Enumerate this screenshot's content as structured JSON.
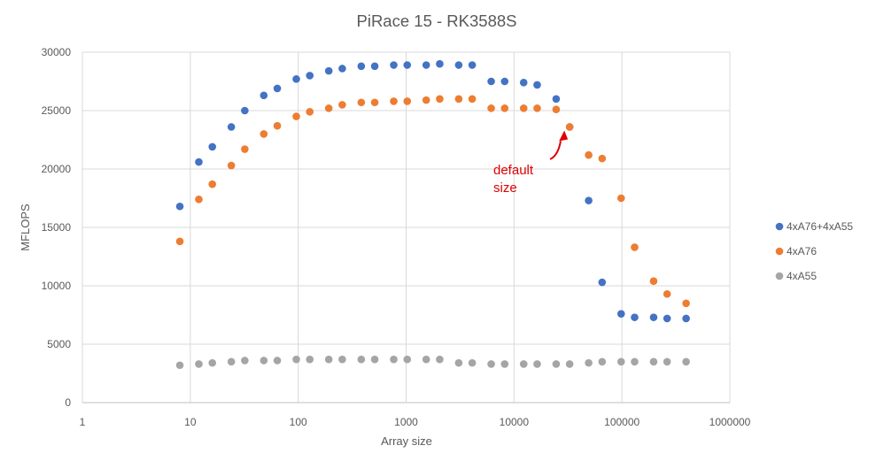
{
  "chart_data": {
    "type": "scatter",
    "title": "PiRace 15 - RK3588S",
    "xlabel": "Array size",
    "ylabel": "MFLOPS",
    "xscale": "log",
    "xlim": [
      1,
      1000000
    ],
    "ylim": [
      0,
      30000
    ],
    "xticks": [
      "1",
      "10",
      "100",
      "1000",
      "10000",
      "100000",
      "1000000"
    ],
    "yticks": [
      "0",
      "5000",
      "10000",
      "15000",
      "20000",
      "25000",
      "30000"
    ],
    "grid": true,
    "legend_position": "right",
    "series": [
      {
        "name": "4xA76+4xA55",
        "color": "#4472C4",
        "x": [
          8,
          12,
          16,
          24,
          32,
          48,
          64,
          96,
          128,
          192,
          256,
          384,
          512,
          768,
          1024,
          1536,
          2048,
          3072,
          4096,
          6144,
          8192,
          12288,
          16384,
          24576,
          32768,
          49152,
          65536,
          98304,
          131072,
          196608,
          262144,
          393216
        ],
        "y": [
          16800,
          20600,
          21900,
          23600,
          25000,
          26300,
          26900,
          27700,
          28000,
          28400,
          28600,
          28800,
          28800,
          28900,
          28900,
          28900,
          29000,
          28900,
          28900,
          27500,
          27500,
          27400,
          27200,
          26000,
          23600,
          17300,
          10300,
          7600,
          7300,
          7300,
          7200,
          7200
        ]
      },
      {
        "name": "4xA76",
        "color": "#ED7D31",
        "x": [
          8,
          12,
          16,
          24,
          32,
          48,
          64,
          96,
          128,
          192,
          256,
          384,
          512,
          768,
          1024,
          1536,
          2048,
          3072,
          4096,
          6144,
          8192,
          12288,
          16384,
          24576,
          32768,
          49152,
          65536,
          98304,
          131072,
          196608,
          262144,
          393216
        ],
        "y": [
          13800,
          17400,
          18700,
          20300,
          21700,
          23000,
          23700,
          24500,
          24900,
          25200,
          25500,
          25700,
          25700,
          25800,
          25800,
          25900,
          26000,
          26000,
          26000,
          25200,
          25200,
          25200,
          25200,
          25100,
          23600,
          21200,
          20900,
          17500,
          13300,
          10400,
          9300,
          8500
        ]
      },
      {
        "name": "4xA55",
        "color": "#A5A5A5",
        "x": [
          8,
          12,
          16,
          24,
          32,
          48,
          64,
          96,
          128,
          192,
          256,
          384,
          512,
          768,
          1024,
          1536,
          2048,
          3072,
          4096,
          6144,
          8192,
          12288,
          16384,
          24576,
          32768,
          49152,
          65536,
          98304,
          131072,
          196608,
          262144,
          393216
        ],
        "y": [
          3200,
          3300,
          3400,
          3500,
          3600,
          3600,
          3600,
          3700,
          3700,
          3700,
          3700,
          3700,
          3700,
          3700,
          3700,
          3700,
          3700,
          3400,
          3400,
          3300,
          3300,
          3300,
          3300,
          3300,
          3300,
          3400,
          3500,
          3500,
          3500,
          3500,
          3500,
          3500
        ]
      }
    ],
    "annotations": [
      {
        "text_lines": [
          "default",
          "size"
        ],
        "color": "#e00000",
        "points_to": {
          "x": 32768,
          "y": 23600
        }
      }
    ]
  }
}
